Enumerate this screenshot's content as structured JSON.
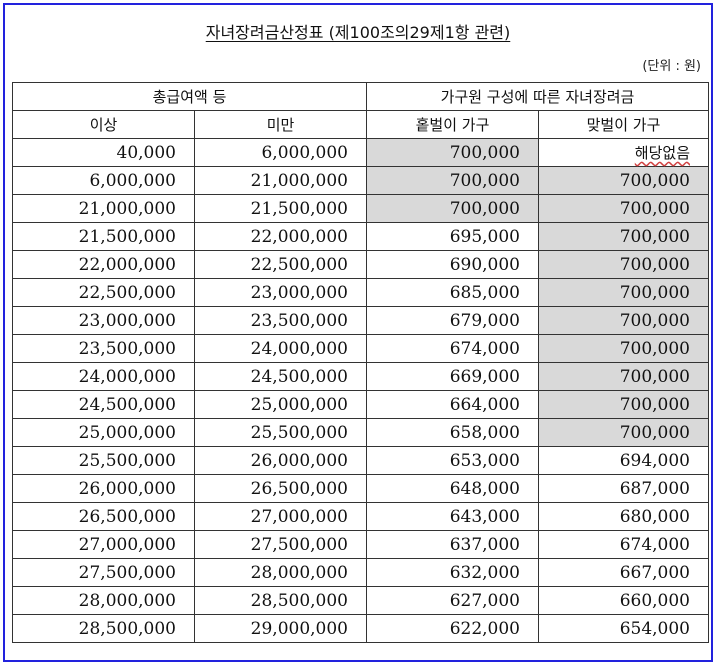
{
  "title": "자녀장려금산정표 (제100조의29제1항 관련)",
  "unit": "(단위 : 원)",
  "headers": {
    "group_income": "총급여액 등",
    "group_award": "가구원 구성에 따른 자녀장려금",
    "min": "이상",
    "max": "미만",
    "single": "홑벌이 가구",
    "dual": "맞벌이 가구"
  },
  "rows": [
    {
      "min": "40,000",
      "max": "6,000,000",
      "single": "700,000",
      "dual": "해당없음",
      "single_shaded": true,
      "dual_shaded": false,
      "dual_na": true
    },
    {
      "min": "6,000,000",
      "max": "21,000,000",
      "single": "700,000",
      "dual": "700,000",
      "single_shaded": true,
      "dual_shaded": true
    },
    {
      "min": "21,000,000",
      "max": "21,500,000",
      "single": "700,000",
      "dual": "700,000",
      "single_shaded": true,
      "dual_shaded": true
    },
    {
      "min": "21,500,000",
      "max": "22,000,000",
      "single": "695,000",
      "dual": "700,000",
      "single_shaded": false,
      "dual_shaded": true
    },
    {
      "min": "22,000,000",
      "max": "22,500,000",
      "single": "690,000",
      "dual": "700,000",
      "single_shaded": false,
      "dual_shaded": true
    },
    {
      "min": "22,500,000",
      "max": "23,000,000",
      "single": "685,000",
      "dual": "700,000",
      "single_shaded": false,
      "dual_shaded": true
    },
    {
      "min": "23,000,000",
      "max": "23,500,000",
      "single": "679,000",
      "dual": "700,000",
      "single_shaded": false,
      "dual_shaded": true
    },
    {
      "min": "23,500,000",
      "max": "24,000,000",
      "single": "674,000",
      "dual": "700,000",
      "single_shaded": false,
      "dual_shaded": true
    },
    {
      "min": "24,000,000",
      "max": "24,500,000",
      "single": "669,000",
      "dual": "700,000",
      "single_shaded": false,
      "dual_shaded": true
    },
    {
      "min": "24,500,000",
      "max": "25,000,000",
      "single": "664,000",
      "dual": "700,000",
      "single_shaded": false,
      "dual_shaded": true
    },
    {
      "min": "25,000,000",
      "max": "25,500,000",
      "single": "658,000",
      "dual": "700,000",
      "single_shaded": false,
      "dual_shaded": true
    },
    {
      "min": "25,500,000",
      "max": "26,000,000",
      "single": "653,000",
      "dual": "694,000",
      "single_shaded": false,
      "dual_shaded": false
    },
    {
      "min": "26,000,000",
      "max": "26,500,000",
      "single": "648,000",
      "dual": "687,000",
      "single_shaded": false,
      "dual_shaded": false
    },
    {
      "min": "26,500,000",
      "max": "27,000,000",
      "single": "643,000",
      "dual": "680,000",
      "single_shaded": false,
      "dual_shaded": false
    },
    {
      "min": "27,000,000",
      "max": "27,500,000",
      "single": "637,000",
      "dual": "674,000",
      "single_shaded": false,
      "dual_shaded": false
    },
    {
      "min": "27,500,000",
      "max": "28,000,000",
      "single": "632,000",
      "dual": "667,000",
      "single_shaded": false,
      "dual_shaded": false
    },
    {
      "min": "28,000,000",
      "max": "28,500,000",
      "single": "627,000",
      "dual": "660,000",
      "single_shaded": false,
      "dual_shaded": false
    },
    {
      "min": "28,500,000",
      "max": "29,000,000",
      "single": "622,000",
      "dual": "654,000",
      "single_shaded": false,
      "dual_shaded": false
    }
  ],
  "colors": {
    "frame": "#2222dd",
    "shade": "#d9d9d9"
  }
}
